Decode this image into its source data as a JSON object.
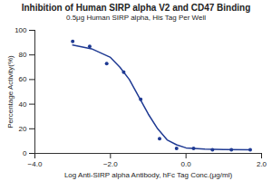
{
  "chart_data": {
    "type": "scatter",
    "title": "Inhibition of Human SIRP alpha V2 and CD47 Binding",
    "subtitle": "0.5μg Human SIRP alpha, His Tag Per Well",
    "x_label": "Log Anti-SIRP alpha Antibody, hFc Tag Conc.(μg/ml)",
    "y_label": "Percentage Activity(%)",
    "xlim": [
      -4,
      2
    ],
    "xticks": [
      -4,
      -2,
      0,
      2
    ],
    "ylim": [
      0,
      100
    ],
    "yticks": [
      0,
      20,
      40,
      60,
      80,
      100
    ],
    "grid": false,
    "series": [
      {
        "type": "scatter",
        "marker": "circle",
        "color": "#1f3a93",
        "x": [
          -3.0,
          -2.55,
          -2.1,
          -1.65,
          -1.2,
          -0.7,
          -0.25,
          0.2,
          0.7,
          1.2,
          1.7
        ],
        "values": [
          91,
          87,
          73,
          66,
          44,
          12,
          4,
          4,
          3,
          3,
          3
        ]
      },
      {
        "type": "line",
        "line_style": "solid",
        "color": "#1f3a93",
        "x": [
          -3.0,
          -2.5,
          -2.0,
          -1.75,
          -1.5,
          -1.25,
          -1.0,
          -0.75,
          -0.5,
          -0.25,
          0.0,
          0.5,
          1.0,
          1.7
        ],
        "values": [
          88,
          85,
          78,
          70,
          60,
          46,
          32,
          20,
          11,
          7,
          4.5,
          3.5,
          3.2,
          3
        ]
      }
    ]
  }
}
